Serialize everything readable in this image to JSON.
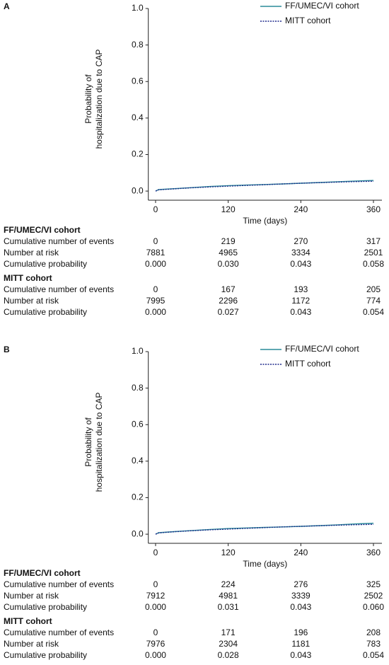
{
  "chart_data": [
    {
      "type": "line",
      "panel": "A",
      "ylabel": [
        "Probability of",
        "hospitalization due to CAP"
      ],
      "xlabel": "Time (days)",
      "xlim": [
        -12,
        374
      ],
      "xticks": [
        0,
        120,
        240,
        360
      ],
      "ylim": [
        -0.05,
        1.0
      ],
      "yticks": [
        {
          "value": 0,
          "label": "0.0"
        },
        {
          "value": 0.2,
          "label": "0.2"
        },
        {
          "value": 0.4,
          "label": "0.4"
        },
        {
          "value": 0.6,
          "label": "0.6"
        },
        {
          "value": 0.8,
          "label": "0.8"
        },
        {
          "value": 1,
          "label": "1.0"
        }
      ],
      "x": [
        0,
        5,
        30,
        60,
        90,
        120,
        150,
        180,
        210,
        240,
        270,
        300,
        330,
        360
      ],
      "series": [
        {
          "name": "FF/UMEC/VI cohort",
          "color": "#2a8c99",
          "dash": false,
          "values": [
            0,
            0.008,
            0.013,
            0.019,
            0.025,
            0.03,
            0.033,
            0.036,
            0.039,
            0.043,
            0.047,
            0.051,
            0.055,
            0.058
          ]
        },
        {
          "name": "MITT cohort",
          "color": "#1f2a8c",
          "dash": true,
          "values": [
            0,
            0.007,
            0.012,
            0.018,
            0.023,
            0.027,
            0.031,
            0.035,
            0.039,
            0.043,
            0.046,
            0.049,
            0.052,
            0.054
          ]
        }
      ],
      "risk_table": [
        {
          "name": "FF/UMEC/VI cohort",
          "rows": [
            {
              "label": "Cumulative number of events",
              "cells": [
                "0",
                "219",
                "270",
                "317"
              ]
            },
            {
              "label": "Number at risk",
              "cells": [
                "7881",
                "4965",
                "3334",
                "2501"
              ]
            },
            {
              "label": "Cumulative probability",
              "cells": [
                "0.000",
                "0.030",
                "0.043",
                "0.058"
              ]
            }
          ]
        },
        {
          "name": "MITT cohort",
          "rows": [
            {
              "label": "Cumulative number of events",
              "cells": [
                "0",
                "167",
                "193",
                "205"
              ]
            },
            {
              "label": "Number at risk",
              "cells": [
                "7995",
                "2296",
                "1172",
                "774"
              ]
            },
            {
              "label": "Cumulative probability",
              "cells": [
                "0.000",
                "0.027",
                "0.043",
                "0.054"
              ]
            }
          ]
        }
      ]
    },
    {
      "type": "line",
      "panel": "B",
      "ylabel": [
        "Probability of",
        "hospitalization due to CAP"
      ],
      "xlabel": "Time (days)",
      "xlim": [
        -12,
        374
      ],
      "xticks": [
        0,
        120,
        240,
        360
      ],
      "ylim": [
        -0.05,
        1.0
      ],
      "yticks": [
        {
          "value": 0,
          "label": "0.0"
        },
        {
          "value": 0.2,
          "label": "0.2"
        },
        {
          "value": 0.4,
          "label": "0.4"
        },
        {
          "value": 0.6,
          "label": "0.6"
        },
        {
          "value": 0.8,
          "label": "0.8"
        },
        {
          "value": 1,
          "label": "1.0"
        }
      ],
      "x": [
        0,
        5,
        30,
        60,
        90,
        120,
        150,
        180,
        210,
        240,
        270,
        300,
        330,
        360
      ],
      "series": [
        {
          "name": "FF/UMEC/VI cohort",
          "color": "#2a8c99",
          "dash": false,
          "values": [
            0,
            0.008,
            0.014,
            0.02,
            0.026,
            0.031,
            0.034,
            0.037,
            0.04,
            0.043,
            0.047,
            0.051,
            0.056,
            0.06
          ]
        },
        {
          "name": "MITT cohort",
          "color": "#1f2a8c",
          "dash": true,
          "values": [
            0,
            0.007,
            0.013,
            0.019,
            0.024,
            0.028,
            0.032,
            0.036,
            0.04,
            0.043,
            0.046,
            0.049,
            0.052,
            0.054
          ]
        }
      ],
      "risk_table": [
        {
          "name": "FF/UMEC/VI cohort",
          "rows": [
            {
              "label": "Cumulative number of events",
              "cells": [
                "0",
                "224",
                "276",
                "325"
              ]
            },
            {
              "label": "Number at risk",
              "cells": [
                "7912",
                "4981",
                "3339",
                "2502"
              ]
            },
            {
              "label": "Cumulative probability",
              "cells": [
                "0.000",
                "0.031",
                "0.043",
                "0.060"
              ]
            }
          ]
        },
        {
          "name": "MITT cohort",
          "rows": [
            {
              "label": "Cumulative number of events",
              "cells": [
                "0",
                "171",
                "196",
                "208"
              ]
            },
            {
              "label": "Number at risk",
              "cells": [
                "7976",
                "2304",
                "1181",
                "783"
              ]
            },
            {
              "label": "Cumulative probability",
              "cells": [
                "0.000",
                "0.028",
                "0.043",
                "0.054"
              ]
            }
          ]
        }
      ]
    }
  ]
}
